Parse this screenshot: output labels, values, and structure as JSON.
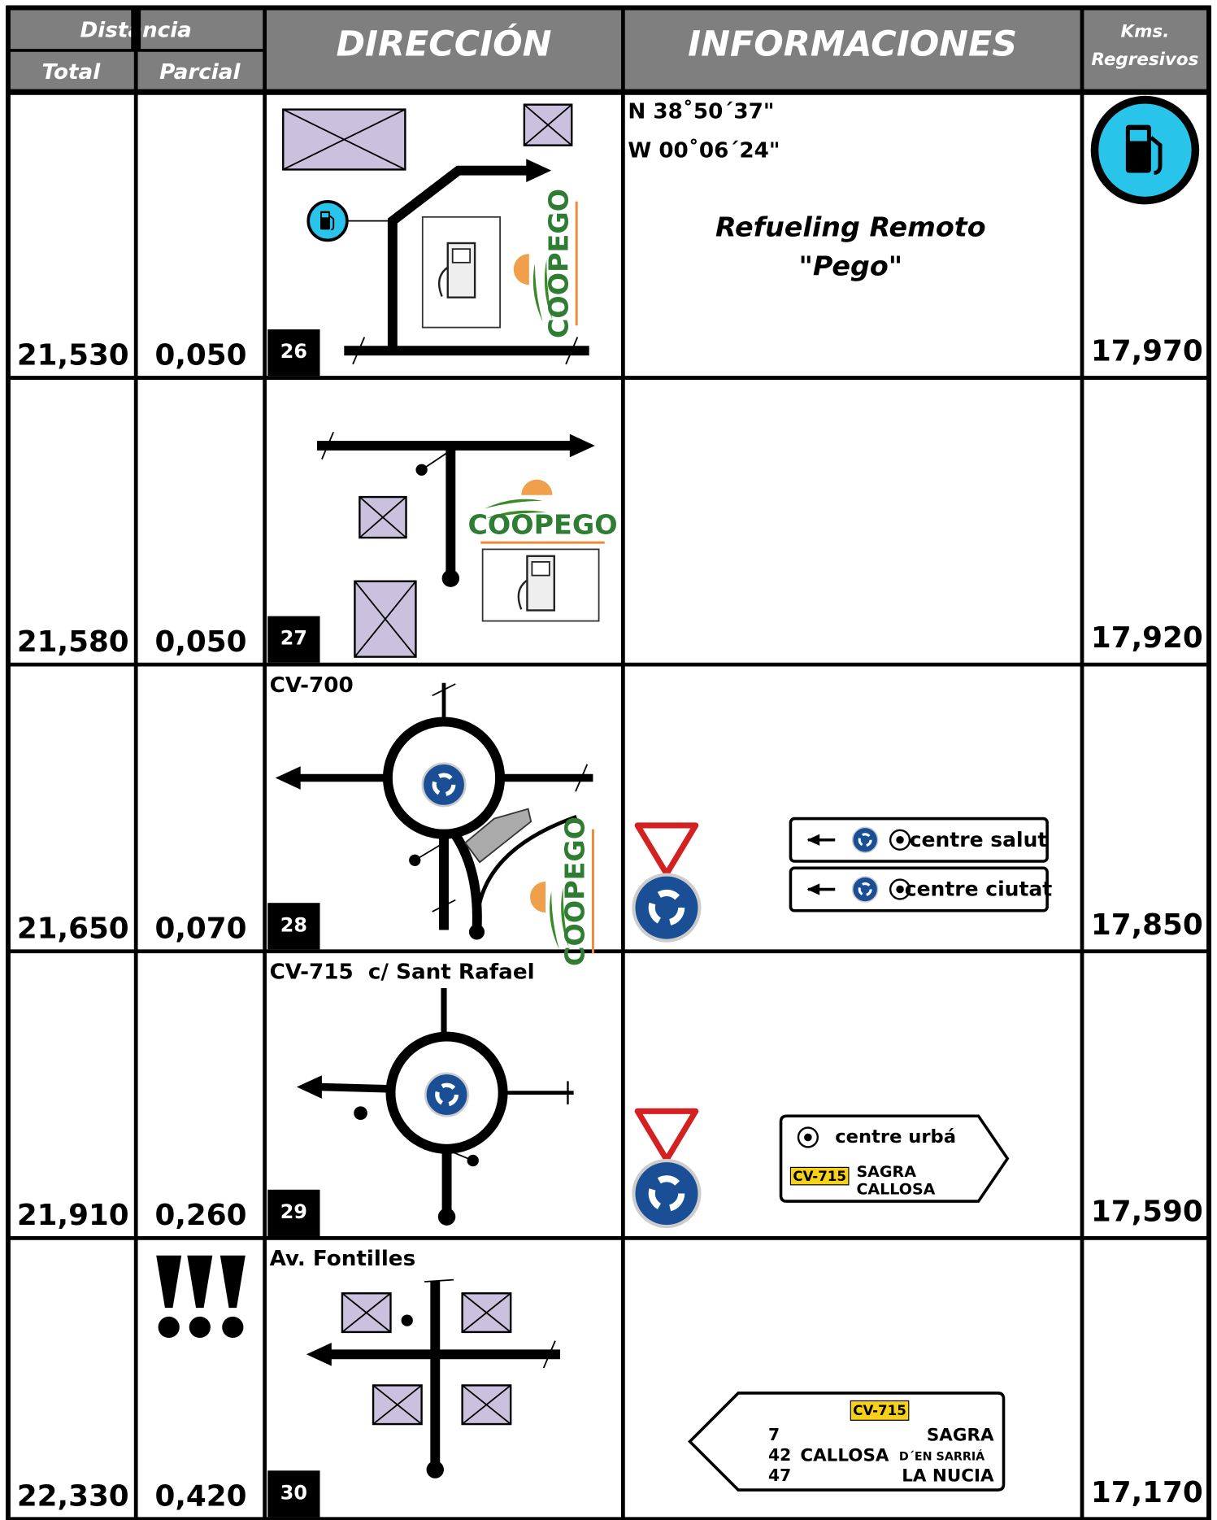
{
  "header": {
    "distance": "Distancia",
    "total": "Total",
    "partial": "Parcial",
    "direction": "DIRECCIÓN",
    "information": "INFORMACIONES",
    "kms": "Kms.",
    "remaining": "Regresivos"
  },
  "rows": [
    {
      "total": "21,530",
      "partial": "0,050",
      "step": "26",
      "remaining": "17,970",
      "logo": "COOPEGO",
      "info": {
        "coordinates": [
          "N 38˚50´37\"",
          "W 00˚06´24\""
        ],
        "note": [
          "Refueling Remoto",
          "\"Pego\""
        ]
      }
    },
    {
      "total": "21,580",
      "partial": "0,050",
      "step": "27",
      "remaining": "17,920",
      "logo": "COOPEGO"
    },
    {
      "total": "21,650",
      "partial": "0,070",
      "step": "28",
      "remaining": "17,850",
      "road": "CV-700",
      "logo": "COOPEGO",
      "signs": [
        "centre salut",
        "centre ciutat"
      ]
    },
    {
      "total": "21,910",
      "partial": "0,260",
      "step": "29",
      "remaining": "17,590",
      "road": "CV-715  c/ Sant Rafael",
      "sign": {
        "line": "centre urbá",
        "road": "CV-715",
        "destinations": [
          "SAGRA",
          "CALLOSA"
        ]
      }
    },
    {
      "total": "22,330",
      "partial": "0,420",
      "step": "30",
      "remaining": "17,170",
      "road": "Av. Fontilles",
      "sign": {
        "road": "CV-715",
        "destinations": [
          {
            "km": "7",
            "name": "SAGRA"
          },
          {
            "km": "42",
            "name": "CALLOSA",
            "suffix": "D´EN SARRIÁ"
          },
          {
            "km": "47",
            "name": "LA NUCIA"
          }
        ]
      }
    }
  ]
}
